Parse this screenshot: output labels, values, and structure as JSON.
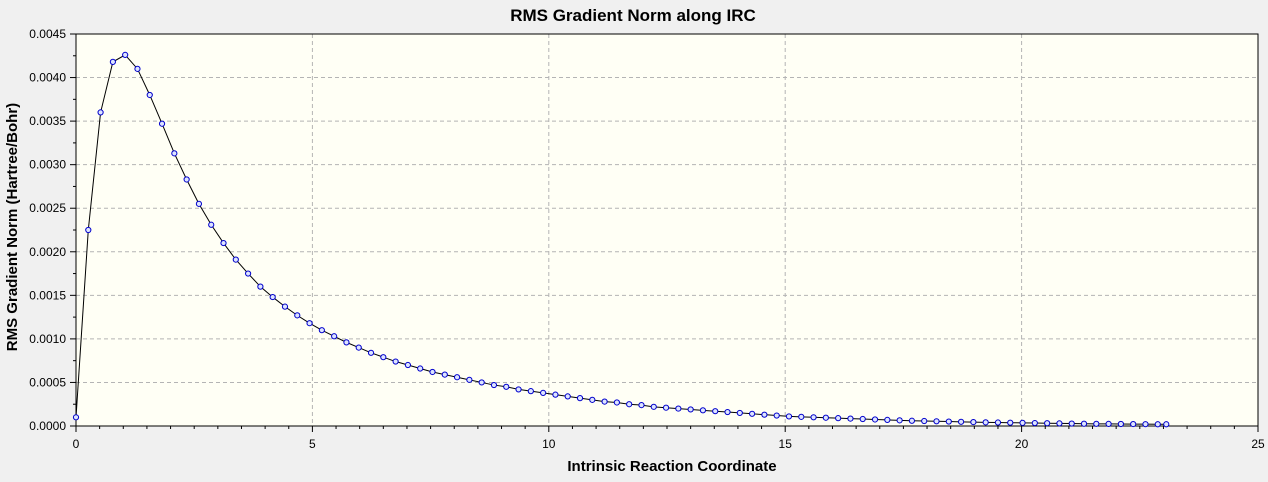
{
  "chart_data": {
    "type": "line",
    "title": "RMS Gradient Norm along IRC",
    "xlabel": "Intrinsic Reaction Coordinate",
    "ylabel": "RMS Gradient Norm (Hartree/Bohr)",
    "xlim": [
      0,
      25
    ],
    "ylim": [
      0,
      0.0045
    ],
    "x_ticks": [
      "0",
      "5",
      "10",
      "15",
      "20",
      "25"
    ],
    "y_ticks": [
      "0.0000",
      "0.0005",
      "0.0010",
      "0.0015",
      "0.0020",
      "0.0025",
      "0.0030",
      "0.0035",
      "0.0040",
      "0.0045"
    ],
    "grid": true,
    "legend": "none",
    "colors": {
      "line": "#000000",
      "marker_stroke": "#0000cc",
      "marker_fill": "#dde4ff",
      "plot_bg": "#fffff5",
      "grid": "#b4b4b4"
    },
    "series": [
      {
        "x": [
          0.0,
          0.26,
          0.52,
          0.78,
          1.04,
          1.3,
          1.56,
          1.82,
          2.08,
          2.34,
          2.6,
          2.86,
          3.12,
          3.38,
          3.64,
          3.9,
          4.16,
          4.42,
          4.68,
          4.94,
          5.2,
          5.46,
          5.72,
          5.98,
          6.24,
          6.5,
          6.76,
          7.02,
          7.28,
          7.54,
          7.8,
          8.06,
          8.32,
          8.58,
          8.84,
          9.1,
          9.36,
          9.62,
          9.88,
          10.14,
          10.4,
          10.66,
          10.92,
          11.18,
          11.44,
          11.7,
          11.96,
          12.22,
          12.48,
          12.74,
          13.0,
          13.26,
          13.52,
          13.78,
          14.04,
          14.3,
          14.56,
          14.82,
          15.08,
          15.34,
          15.6,
          15.86,
          16.12,
          16.38,
          16.64,
          16.9,
          17.16,
          17.42,
          17.68,
          17.94,
          18.2,
          18.46,
          18.72,
          18.98,
          19.24,
          19.5,
          19.76,
          20.02,
          20.28,
          20.54,
          20.8,
          21.06,
          21.32,
          21.58,
          21.84,
          22.1,
          22.36,
          22.62,
          22.88,
          23.06
        ],
        "y": [
          0.0001,
          0.00225,
          0.0036,
          0.00418,
          0.00426,
          0.0041,
          0.0038,
          0.00347,
          0.00313,
          0.00283,
          0.00255,
          0.00231,
          0.0021,
          0.00191,
          0.00175,
          0.0016,
          0.00148,
          0.00137,
          0.00127,
          0.00118,
          0.0011,
          0.00103,
          0.00096,
          0.0009,
          0.00084,
          0.00079,
          0.00074,
          0.0007,
          0.00066,
          0.00062,
          0.00059,
          0.00056,
          0.00053,
          0.0005,
          0.00047,
          0.00045,
          0.00042,
          0.0004,
          0.00038,
          0.00036,
          0.00034,
          0.00032,
          0.0003,
          0.00028,
          0.00027,
          0.00025,
          0.00024,
          0.00022,
          0.00021,
          0.0002,
          0.00019,
          0.00018,
          0.00017,
          0.00016,
          0.00015,
          0.00014,
          0.00013,
          0.00012,
          0.00011,
          0.000105,
          0.0001,
          9.5e-05,
          9e-05,
          8.5e-05,
          8e-05,
          7.5e-05,
          7e-05,
          6.5e-05,
          6e-05,
          5.7e-05,
          5.4e-05,
          5.1e-05,
          4.8e-05,
          4.5e-05,
          4.2e-05,
          4e-05,
          3.8e-05,
          3.6e-05,
          3.4e-05,
          3.2e-05,
          3e-05,
          2.8e-05,
          2.6e-05,
          2.5e-05,
          2.4e-05,
          2.3e-05,
          2.2e-05,
          2.1e-05,
          2e-05,
          2e-05
        ]
      }
    ]
  }
}
